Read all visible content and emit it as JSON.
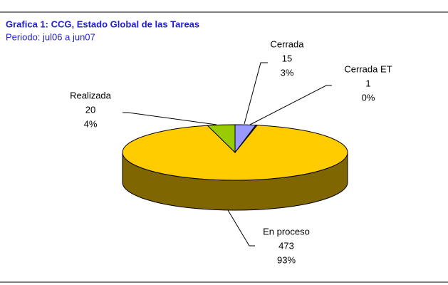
{
  "chart_data": {
    "type": "pie",
    "title": "Grafica 1: CCG, Estado Global de las Tareas",
    "subtitle": "Periodo: jul06 a jun07",
    "categories": [
      "Cerrada",
      "Cerrada ET",
      "En proceso",
      "Realizada"
    ],
    "values": [
      15,
      1,
      473,
      20
    ],
    "percentages": [
      3,
      0,
      93,
      4
    ],
    "percentage_labels": [
      "3%",
      "0%",
      "93%",
      "4%"
    ],
    "colors": [
      "#9999ff",
      "#993366",
      "#ffcc00",
      "#99cc00"
    ],
    "three_d": true
  }
}
